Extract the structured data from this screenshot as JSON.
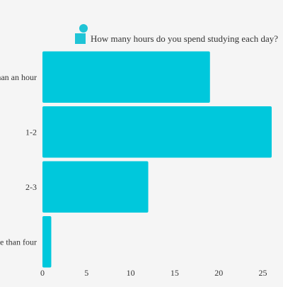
{
  "chart_data": {
    "type": "bar",
    "orientation": "horizontal",
    "categories": [
      "Less than an hour",
      "1-2",
      "2-3",
      "More than four"
    ],
    "series": [
      {
        "name": "How many hours do you spend studying each day?",
        "values": [
          19,
          26,
          12,
          1
        ]
      }
    ],
    "title": "",
    "xlabel": "",
    "ylabel": "",
    "xlim": [
      0,
      26
    ],
    "xticks": [
      0,
      5,
      10,
      15,
      20,
      25
    ],
    "grid": false,
    "legend_position": "top-right",
    "bar_color": "#00c8dc",
    "legend_marker_color": "#1fc4d6"
  }
}
